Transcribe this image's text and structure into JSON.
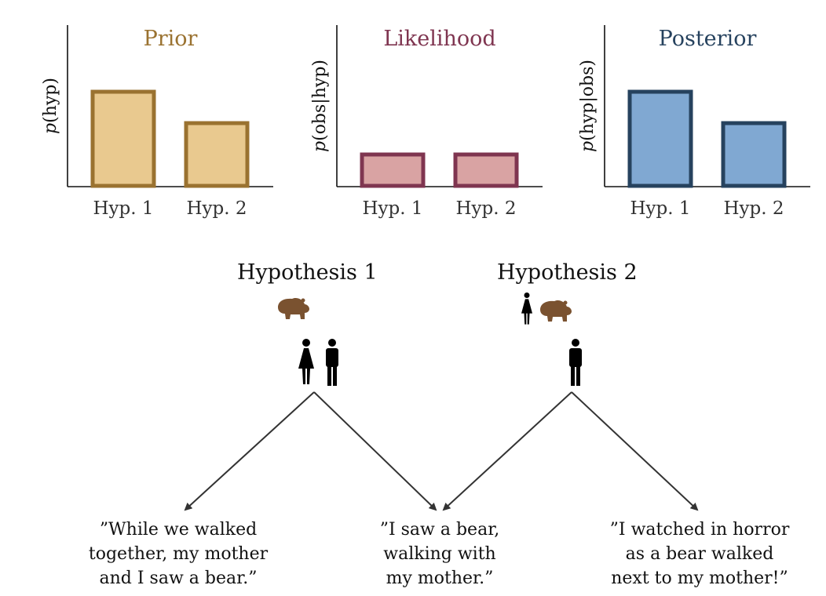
{
  "colors": {
    "prior_fill": "#e9c98f",
    "prior_stroke": "#9a7230",
    "likelihood_fill": "#d9a3a3",
    "likelihood_stroke": "#7f3550",
    "posterior_fill": "#80a8d2",
    "posterior_stroke": "#26425e",
    "bear": "#7a5230",
    "person": "#000000",
    "arrow": "#333333"
  },
  "chart_data": [
    {
      "type": "bar",
      "title": "Prior",
      "ylabel_italic": "p",
      "ylabel_rest": "(hyp)",
      "categories": [
        "Hyp. 1",
        "Hyp. 2"
      ],
      "values": [
        0.6,
        0.4
      ],
      "ylim": [
        0,
        0.6
      ],
      "grid": false,
      "title_color": "#9a7230"
    },
    {
      "type": "bar",
      "title": "Likelihood",
      "ylabel_italic": "p",
      "ylabel_rest": "(obs|hyp)",
      "categories": [
        "Hyp. 1",
        "Hyp. 2"
      ],
      "values": [
        0.2,
        0.2
      ],
      "ylim": [
        0,
        0.6
      ],
      "grid": false,
      "title_color": "#7f3550"
    },
    {
      "type": "bar",
      "title": "Posterior",
      "ylabel_italic": "p",
      "ylabel_rest": "(hyp|obs)",
      "categories": [
        "Hyp. 1",
        "Hyp. 2"
      ],
      "values": [
        0.6,
        0.4
      ],
      "ylim": [
        0,
        0.6
      ],
      "grid": false,
      "title_color": "#26425e"
    }
  ],
  "hypotheses": [
    {
      "title": "Hypothesis 1",
      "icons": [
        "bear-icon",
        "woman-icon",
        "man-icon"
      ]
    },
    {
      "title": "Hypothesis 2",
      "icons": [
        "woman-icon",
        "bear-icon",
        "man-icon"
      ]
    }
  ],
  "observations": [
    {
      "lines": [
        "”While we walked",
        "together, my mother",
        "and I saw a bear.”"
      ]
    },
    {
      "lines": [
        "”I saw a bear,",
        "walking with",
        "my mother.”"
      ]
    },
    {
      "lines": [
        "”I watched in horror",
        "as a bear walked",
        "next to my mother!”"
      ]
    }
  ]
}
